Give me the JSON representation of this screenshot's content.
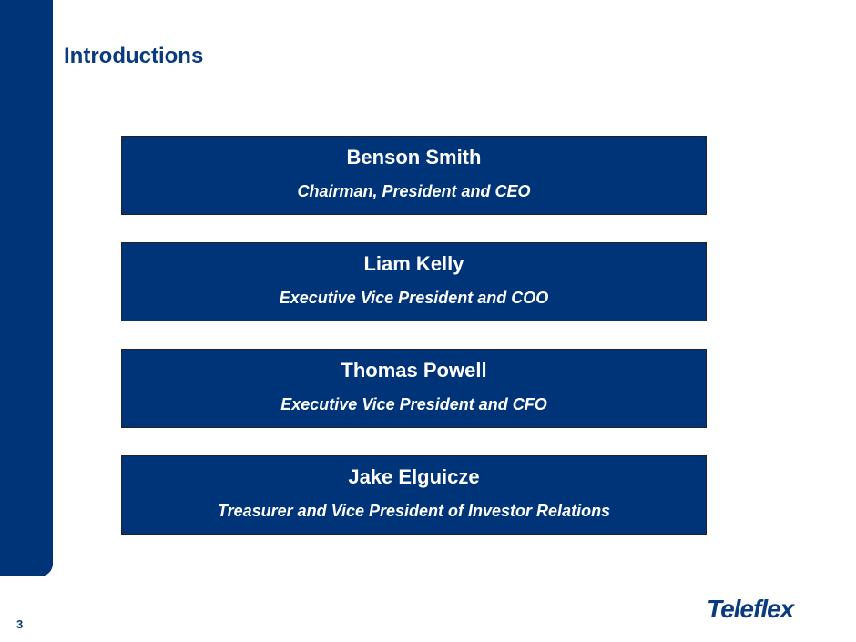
{
  "header": {
    "title": "Introductions"
  },
  "people": [
    {
      "name": "Benson Smith",
      "role": "Chairman, President and CEO"
    },
    {
      "name": "Liam Kelly",
      "role": "Executive Vice President and COO"
    },
    {
      "name": "Thomas Powell",
      "role": "Executive Vice President and CFO"
    },
    {
      "name": "Jake Elguicze",
      "role": "Treasurer and Vice President of Investor Relations"
    }
  ],
  "footer": {
    "page": "3",
    "logo": "Teleflex"
  }
}
